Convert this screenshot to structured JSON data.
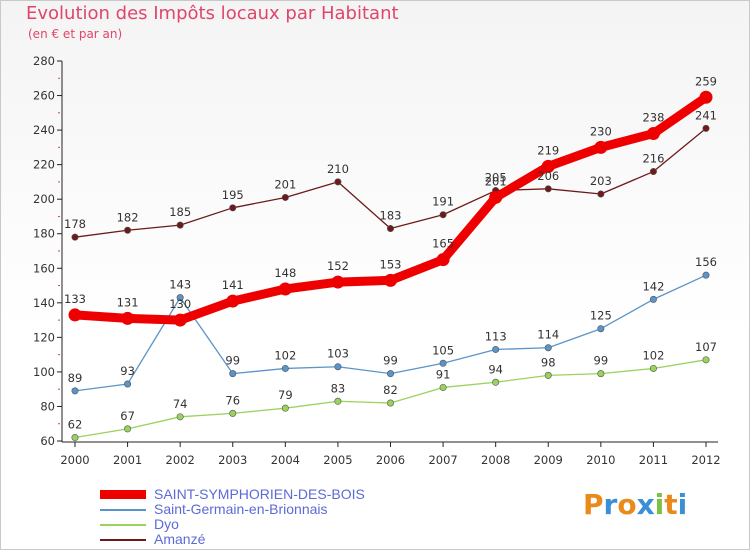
{
  "header": {
    "title": "Evolution des Impôts locaux par Habitant",
    "subtitle": "(en € et par an)"
  },
  "logo": {
    "text": "Proxiti",
    "colors": [
      "#e98a1a",
      "#3b8fd6",
      "#e98a1a",
      "#3b8fd6",
      "#7cc242",
      "#e98a1a",
      "#3b8fd6"
    ]
  },
  "colors": {
    "label_text": "#e0456a",
    "legend_text": "#5b6bd6",
    "frame_border": "#c9c9c9",
    "axis": "#222222",
    "tick_mark": "#d04060"
  },
  "chart_data": {
    "type": "line",
    "title": "Evolution des Impôts locaux par Habitant",
    "subtitle": "(en € et par an)",
    "x": [
      "2000",
      "2001",
      "2002",
      "2003",
      "2004",
      "2005",
      "2006",
      "2007",
      "2008",
      "2009",
      "2010",
      "2011",
      "2012"
    ],
    "ylim": [
      60,
      280
    ],
    "yticks": [
      60,
      80,
      100,
      120,
      140,
      160,
      180,
      200,
      220,
      240,
      260,
      280
    ],
    "grid": false,
    "legend_position": "bottom-left",
    "series": [
      {
        "name": "SAINT-SYMPHORIEN-DES-BOIS",
        "color": "#ee0000",
        "emphasis": true,
        "values": [
          133,
          131,
          130,
          141,
          148,
          152,
          153,
          165,
          201,
          219,
          230,
          238,
          259
        ]
      },
      {
        "name": "Saint-Germain-en-Brionnais",
        "color": "#5b94c8",
        "emphasis": false,
        "values": [
          89,
          93,
          143,
          99,
          102,
          103,
          99,
          105,
          113,
          114,
          125,
          142,
          156
        ]
      },
      {
        "name": "Dyo",
        "color": "#9ad25c",
        "emphasis": false,
        "values": [
          62,
          67,
          74,
          76,
          79,
          83,
          82,
          91,
          94,
          98,
          99,
          102,
          107
        ]
      },
      {
        "name": "Amanzé",
        "color": "#6e1a1a",
        "emphasis": false,
        "values": [
          178,
          182,
          185,
          195,
          201,
          210,
          183,
          191,
          205,
          206,
          203,
          216,
          241
        ]
      }
    ]
  }
}
